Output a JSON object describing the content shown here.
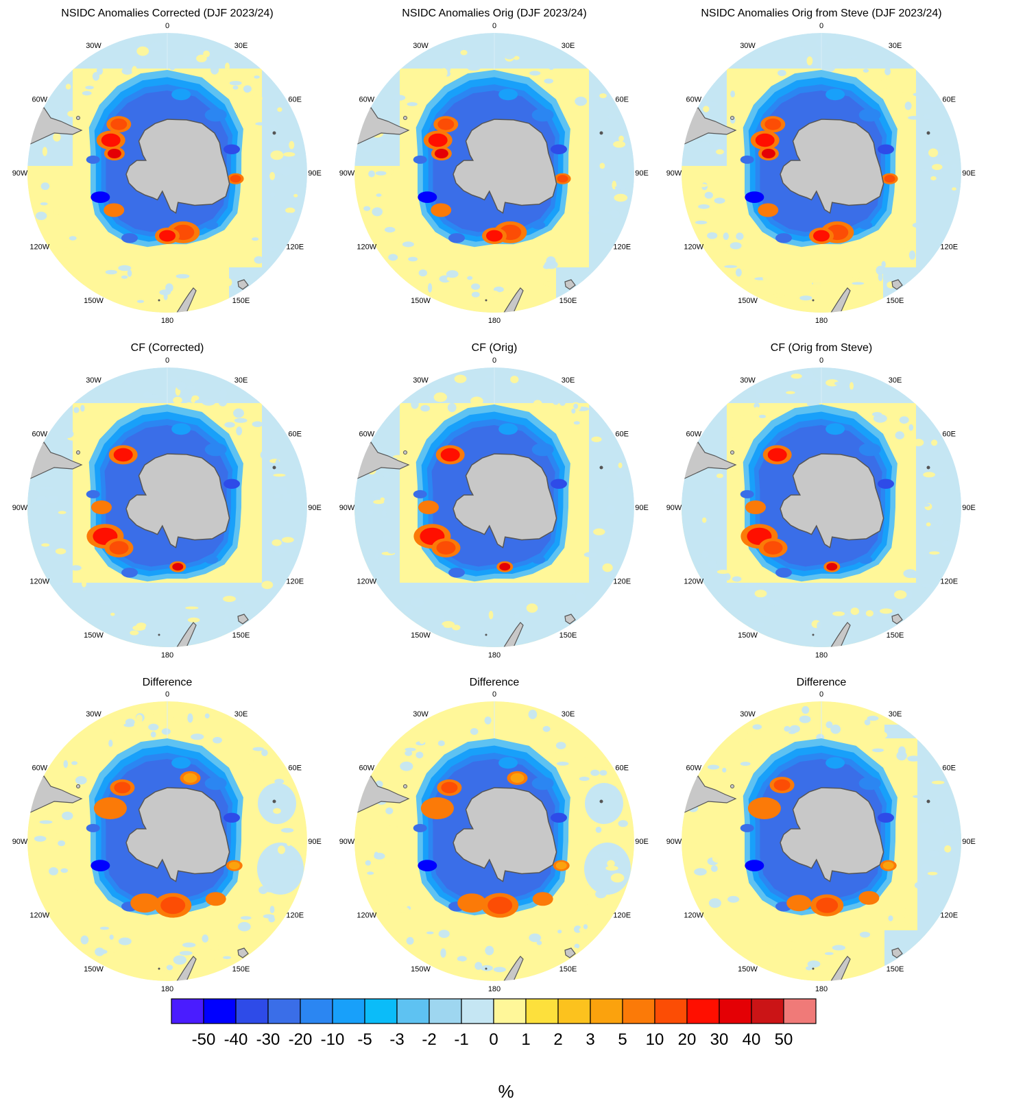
{
  "figure": {
    "panels": [
      {
        "title": "NSIDC Anomalies Corrected (DJF 2023/24)",
        "variant": "anomaly"
      },
      {
        "title": "NSIDC Anomalies Orig (DJF 2023/24)",
        "variant": "anomaly"
      },
      {
        "title": "NSIDC Anomalies Orig from Steve (DJF 2023/24)",
        "variant": "anomaly"
      },
      {
        "title": "CF (Corrected)",
        "variant": "cf"
      },
      {
        "title": "CF (Orig)",
        "variant": "cf"
      },
      {
        "title": "CF (Orig from Steve)",
        "variant": "cf"
      },
      {
        "title": "Difference",
        "variant": "diff"
      },
      {
        "title": "Difference",
        "variant": "diff"
      },
      {
        "title": "Difference",
        "variant": "diff2"
      }
    ],
    "longitude_labels": [
      "0",
      "30E",
      "60E",
      "90E",
      "120E",
      "150E",
      "180",
      "150W",
      "120W",
      "90W",
      "60W",
      "30W"
    ]
  },
  "chart_data": {
    "type": "heatmap",
    "description_text": "",
    "colorbar": {
      "ticks": [
        "-50",
        "-40",
        "-30",
        "-20",
        "-10",
        "-5",
        "-3",
        "-2",
        "-1",
        "0",
        "1",
        "2",
        "3",
        "5",
        "10",
        "20",
        "30",
        "40",
        "50"
      ],
      "colors": [
        "#4a1cff",
        "#0000ff",
        "#2e4be8",
        "#3a6ee8",
        "#2b86f2",
        "#18a0fa",
        "#0bbcf9",
        "#5ec2f2",
        "#9ed6f0",
        "#c5e6f3",
        "#fff799",
        "#fde03c",
        "#fcc21e",
        "#fba20d",
        "#fb7a08",
        "#fc4d05",
        "#ff0f00",
        "#e40005",
        "#cb1416",
        "#f07a78"
      ],
      "unit": "%"
    },
    "colors": {
      "land": "#c8c8c8",
      "coast": "#555555",
      "zero_positive": "#fff799",
      "zero_negative": "#c5e6f3"
    }
  }
}
